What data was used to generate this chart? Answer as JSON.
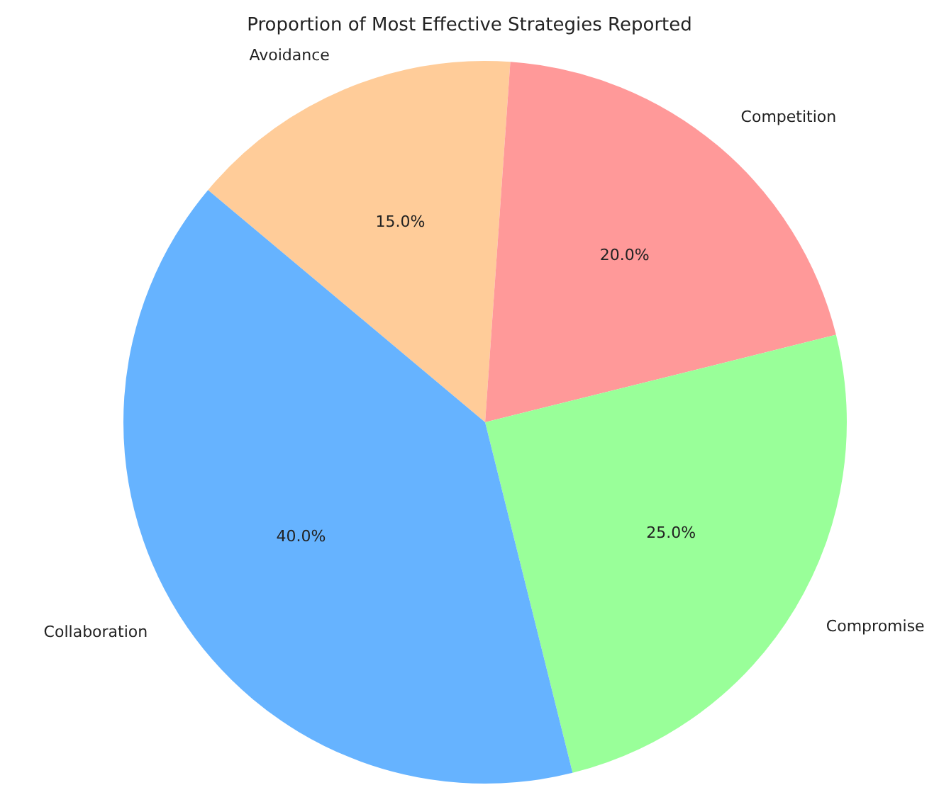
{
  "chart_data": {
    "type": "pie",
    "title": "Proportion of Most Effective Strategies Reported",
    "categories": [
      "Avoidance",
      "Competition",
      "Compromise",
      "Collaboration"
    ],
    "values": [
      15,
      20,
      25,
      40
    ],
    "colors": [
      "#ffcc99",
      "#ff9999",
      "#99ff99",
      "#66b3ff"
    ],
    "value_labels": [
      "15.0%",
      "20.0%",
      "25.0%",
      "40.0%"
    ],
    "legend": false
  }
}
